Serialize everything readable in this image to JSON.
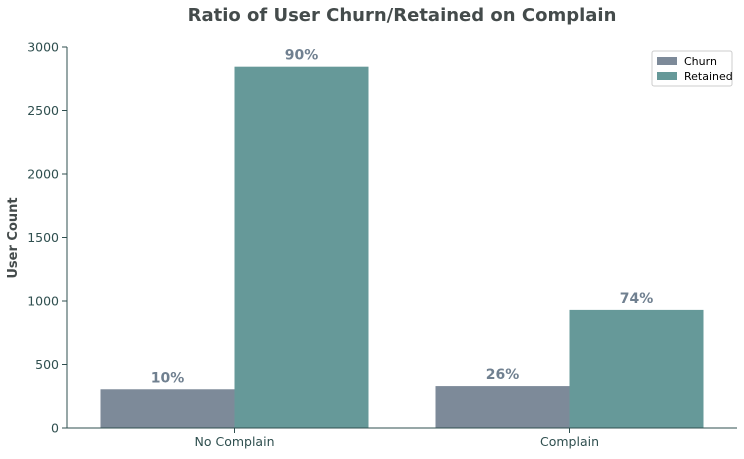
{
  "chart_data": {
    "type": "bar",
    "title": "Ratio of User Churn/Retained on Complain",
    "xlabel": "",
    "ylabel": "User Count",
    "categories": [
      "No Complain",
      "Complain"
    ],
    "series": [
      {
        "name": "Churn",
        "values": [
          305,
          330
        ],
        "labels": [
          "10%",
          "26%"
        ],
        "color": "#7d8a99"
      },
      {
        "name": "Retained",
        "values": [
          2845,
          930
        ],
        "labels": [
          "90%",
          "74%"
        ],
        "color": "#669999"
      }
    ],
    "ylim": [
      0,
      3000
    ],
    "yticks": [
      0,
      500,
      1000,
      1500,
      2000,
      2500,
      3000
    ],
    "grid": false,
    "legend_position": "top-right",
    "colors": {
      "title": "#444b4b",
      "axis": "#2f4f4f",
      "tick_label": "#2f4f4f",
      "data_label": "#708090"
    }
  }
}
